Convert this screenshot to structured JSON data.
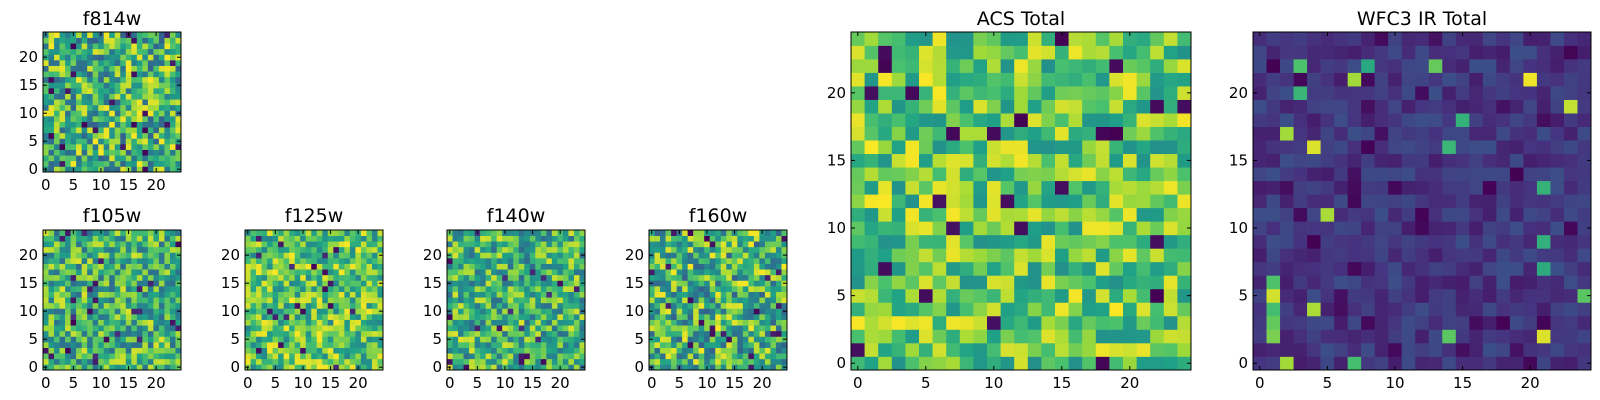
{
  "figure": {
    "background": "#ffffff",
    "colormap": [
      "#440154",
      "#46327e",
      "#365c8d",
      "#277f8e",
      "#1fa187",
      "#4ac16d",
      "#a0da39",
      "#fde725"
    ]
  },
  "chart_data": [
    {
      "id": "f814w",
      "type": "heatmap",
      "title": "f814w",
      "grid": [
        25,
        25
      ],
      "xticks": [
        0,
        5,
        10,
        15,
        20
      ],
      "yticks": [
        0,
        5,
        10,
        15,
        20
      ],
      "xlim": [
        -0.5,
        24.5
      ],
      "ylim": [
        -0.5,
        24.5
      ],
      "value_range": [
        0,
        1
      ],
      "seed": 11,
      "mode": "mid"
    },
    {
      "id": "f105w",
      "type": "heatmap",
      "title": "f105w",
      "grid": [
        25,
        25
      ],
      "xticks": [
        0,
        5,
        10,
        15,
        20
      ],
      "yticks": [
        0,
        5,
        10,
        15,
        20
      ],
      "xlim": [
        -0.5,
        24.5
      ],
      "ylim": [
        -0.5,
        24.5
      ],
      "value_range": [
        0,
        1
      ],
      "seed": 23,
      "mode": "smooth"
    },
    {
      "id": "f125w",
      "type": "heatmap",
      "title": "f125w",
      "grid": [
        25,
        25
      ],
      "xticks": [
        0,
        5,
        10,
        15,
        20
      ],
      "yticks": [
        0,
        5,
        10,
        15,
        20
      ],
      "xlim": [
        -0.5,
        24.5
      ],
      "ylim": [
        -0.5,
        24.5
      ],
      "value_range": [
        0,
        1
      ],
      "seed": 37,
      "mode": "bright"
    },
    {
      "id": "f140w",
      "type": "heatmap",
      "title": "f140w",
      "grid": [
        25,
        25
      ],
      "xticks": [
        0,
        5,
        10,
        15,
        20
      ],
      "yticks": [
        0,
        5,
        10,
        15,
        20
      ],
      "xlim": [
        -0.5,
        24.5
      ],
      "ylim": [
        -0.5,
        24.5
      ],
      "value_range": [
        0,
        1
      ],
      "seed": 41,
      "mode": "smooth"
    },
    {
      "id": "f160w",
      "type": "heatmap",
      "title": "f160w",
      "grid": [
        25,
        25
      ],
      "xticks": [
        0,
        5,
        10,
        15,
        20
      ],
      "yticks": [
        0,
        5,
        10,
        15,
        20
      ],
      "xlim": [
        -0.5,
        24.5
      ],
      "ylim": [
        -0.5,
        24.5
      ],
      "value_range": [
        0,
        1
      ],
      "seed": 53,
      "mode": "mid"
    },
    {
      "id": "acs-total",
      "type": "heatmap",
      "title": "ACS Total",
      "grid": [
        25,
        25
      ],
      "xticks": [
        0,
        5,
        10,
        15,
        20
      ],
      "yticks": [
        0,
        5,
        10,
        15,
        20
      ],
      "xlim": [
        -0.5,
        24.5
      ],
      "ylim": [
        -0.5,
        24.5
      ],
      "value_range": [
        0,
        1
      ],
      "seed": 67,
      "mode": "green"
    },
    {
      "id": "wfc3-ir-total",
      "type": "heatmap",
      "title": "WFC3 IR Total",
      "grid": [
        25,
        25
      ],
      "xticks": [
        0,
        5,
        10,
        15,
        20
      ],
      "yticks": [
        0,
        5,
        10,
        15,
        20
      ],
      "xlim": [
        -0.5,
        24.5
      ],
      "ylim": [
        -0.5,
        24.5
      ],
      "value_range": [
        0,
        1
      ],
      "seed": 79,
      "mode": "dark"
    }
  ]
}
